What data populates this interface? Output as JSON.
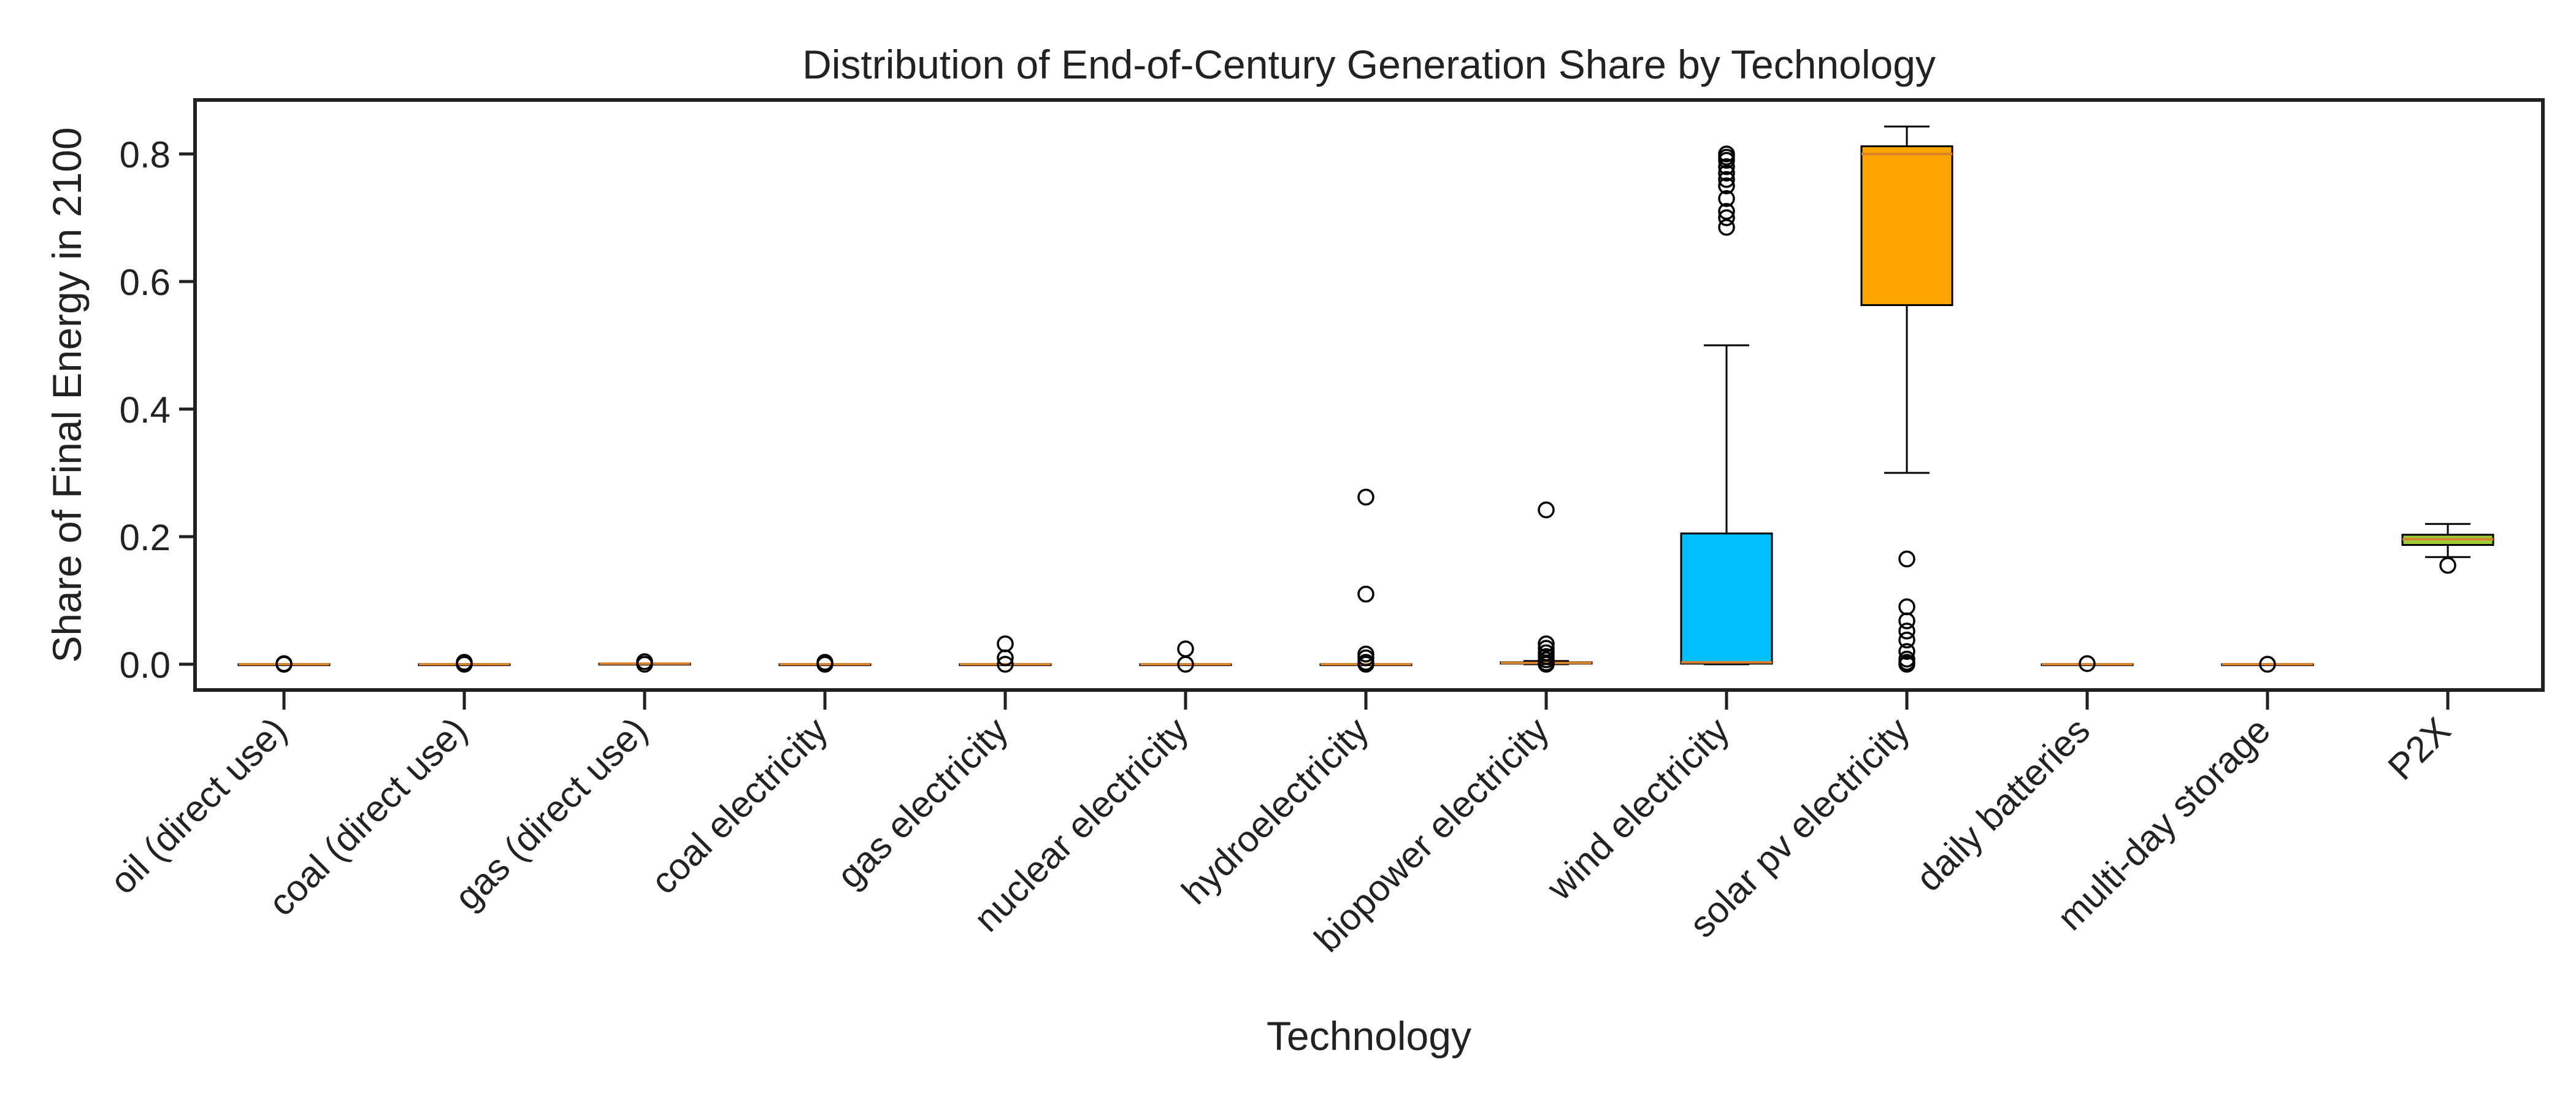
{
  "chart_data": {
    "type": "box",
    "title": "Distribution of End-of-Century Generation Share by Technology",
    "xlabel": "Technology",
    "ylabel": "Share of Final Energy in 2100",
    "ylim": [
      -0.04,
      0.885
    ],
    "yticks": [
      0.0,
      0.2,
      0.4,
      0.6,
      0.8
    ],
    "ytick_labels": [
      "0.0",
      "0.2",
      "0.4",
      "0.6",
      "0.8"
    ],
    "grid": false,
    "legend": "none",
    "median_color": "#d9822b",
    "categories": [
      "oil (direct use)",
      "coal (direct use)",
      "gas (direct use)",
      "coal electricity",
      "gas electricity",
      "nuclear electricity",
      "hydroelectricity",
      "biopower electricity",
      "wind electricity",
      "solar pv electricity",
      "daily batteries",
      "multi-day storage",
      "P2X"
    ],
    "boxes": [
      {
        "label": "oil (direct use)",
        "whislo": 0.0,
        "q1": 0.0,
        "med": 0.0,
        "q3": 0.0,
        "whishi": 0.0,
        "fliers": [
          0.001,
          0.0
        ],
        "color": "#ffffff"
      },
      {
        "label": "coal (direct use)",
        "whislo": 0.0,
        "q1": 0.0,
        "med": 0.0,
        "q3": 0.0,
        "whishi": 0.0,
        "fliers": [
          0.003,
          0.0
        ],
        "color": "#ffffff"
      },
      {
        "label": "gas (direct use)",
        "whislo": 0.0,
        "q1": 0.0,
        "med": 0.001,
        "q3": 0.001,
        "whishi": 0.001,
        "fliers": [
          0.004,
          0.0
        ],
        "color": "#ffffff"
      },
      {
        "label": "coal electricity",
        "whislo": 0.0,
        "q1": 0.0,
        "med": 0.0,
        "q3": 0.0,
        "whishi": 0.0,
        "fliers": [
          0.003,
          0.0
        ],
        "color": "#ffffff"
      },
      {
        "label": "gas electricity",
        "whislo": 0.0,
        "q1": 0.0,
        "med": 0.0,
        "q3": 0.0,
        "whishi": 0.0,
        "fliers": [
          0.032,
          0.01,
          0.0
        ],
        "color": "#ffffff"
      },
      {
        "label": "nuclear electricity",
        "whislo": 0.0,
        "q1": 0.0,
        "med": 0.0,
        "q3": 0.0,
        "whishi": 0.0,
        "fliers": [
          0.024,
          0.0
        ],
        "color": "#ffffff"
      },
      {
        "label": "hydroelectricity",
        "whislo": 0.0,
        "q1": 0.0,
        "med": 0.0,
        "q3": 0.0,
        "whishi": 0.0,
        "fliers": [
          0.262,
          0.11,
          0.016,
          0.01,
          0.003,
          0.0
        ],
        "color": "#ffffff"
      },
      {
        "label": "biopower electricity",
        "whislo": 0.0,
        "q1": 0.001,
        "med": 0.002,
        "q3": 0.003,
        "whishi": 0.005,
        "fliers": [
          0.242,
          0.032,
          0.025,
          0.018,
          0.012,
          0.007,
          0.002,
          0.0
        ],
        "color": "#ffffff"
      },
      {
        "label": "wind electricity",
        "whislo": 0.0,
        "q1": 0.001,
        "med": 0.003,
        "q3": 0.205,
        "whishi": 0.5,
        "fliers": [
          0.8,
          0.795,
          0.79,
          0.78,
          0.77,
          0.76,
          0.75,
          0.73,
          0.71,
          0.7,
          0.685
        ],
        "color": "#00bfff"
      },
      {
        "label": "solar pv electricity",
        "whislo": 0.3,
        "q1": 0.563,
        "med": 0.8,
        "q3": 0.812,
        "whishi": 0.843,
        "fliers": [
          0.165,
          0.09,
          0.068,
          0.052,
          0.038,
          0.02,
          0.008,
          0.003,
          0.0
        ],
        "color": "#ffa500"
      },
      {
        "label": "daily batteries",
        "whislo": 0.0,
        "q1": 0.0,
        "med": 0.0,
        "q3": 0.0,
        "whishi": 0.0,
        "fliers": [
          0.001
        ],
        "color": "#ffffff"
      },
      {
        "label": "multi-day storage",
        "whislo": 0.0,
        "q1": 0.0,
        "med": 0.0,
        "q3": 0.0,
        "whishi": 0.0,
        "fliers": [
          0.0
        ],
        "color": "#ffffff"
      },
      {
        "label": "P2X",
        "whislo": 0.168,
        "q1": 0.187,
        "med": 0.196,
        "q3": 0.203,
        "whishi": 0.22,
        "fliers": [
          0.155
        ],
        "color": "#9acd32"
      }
    ]
  }
}
